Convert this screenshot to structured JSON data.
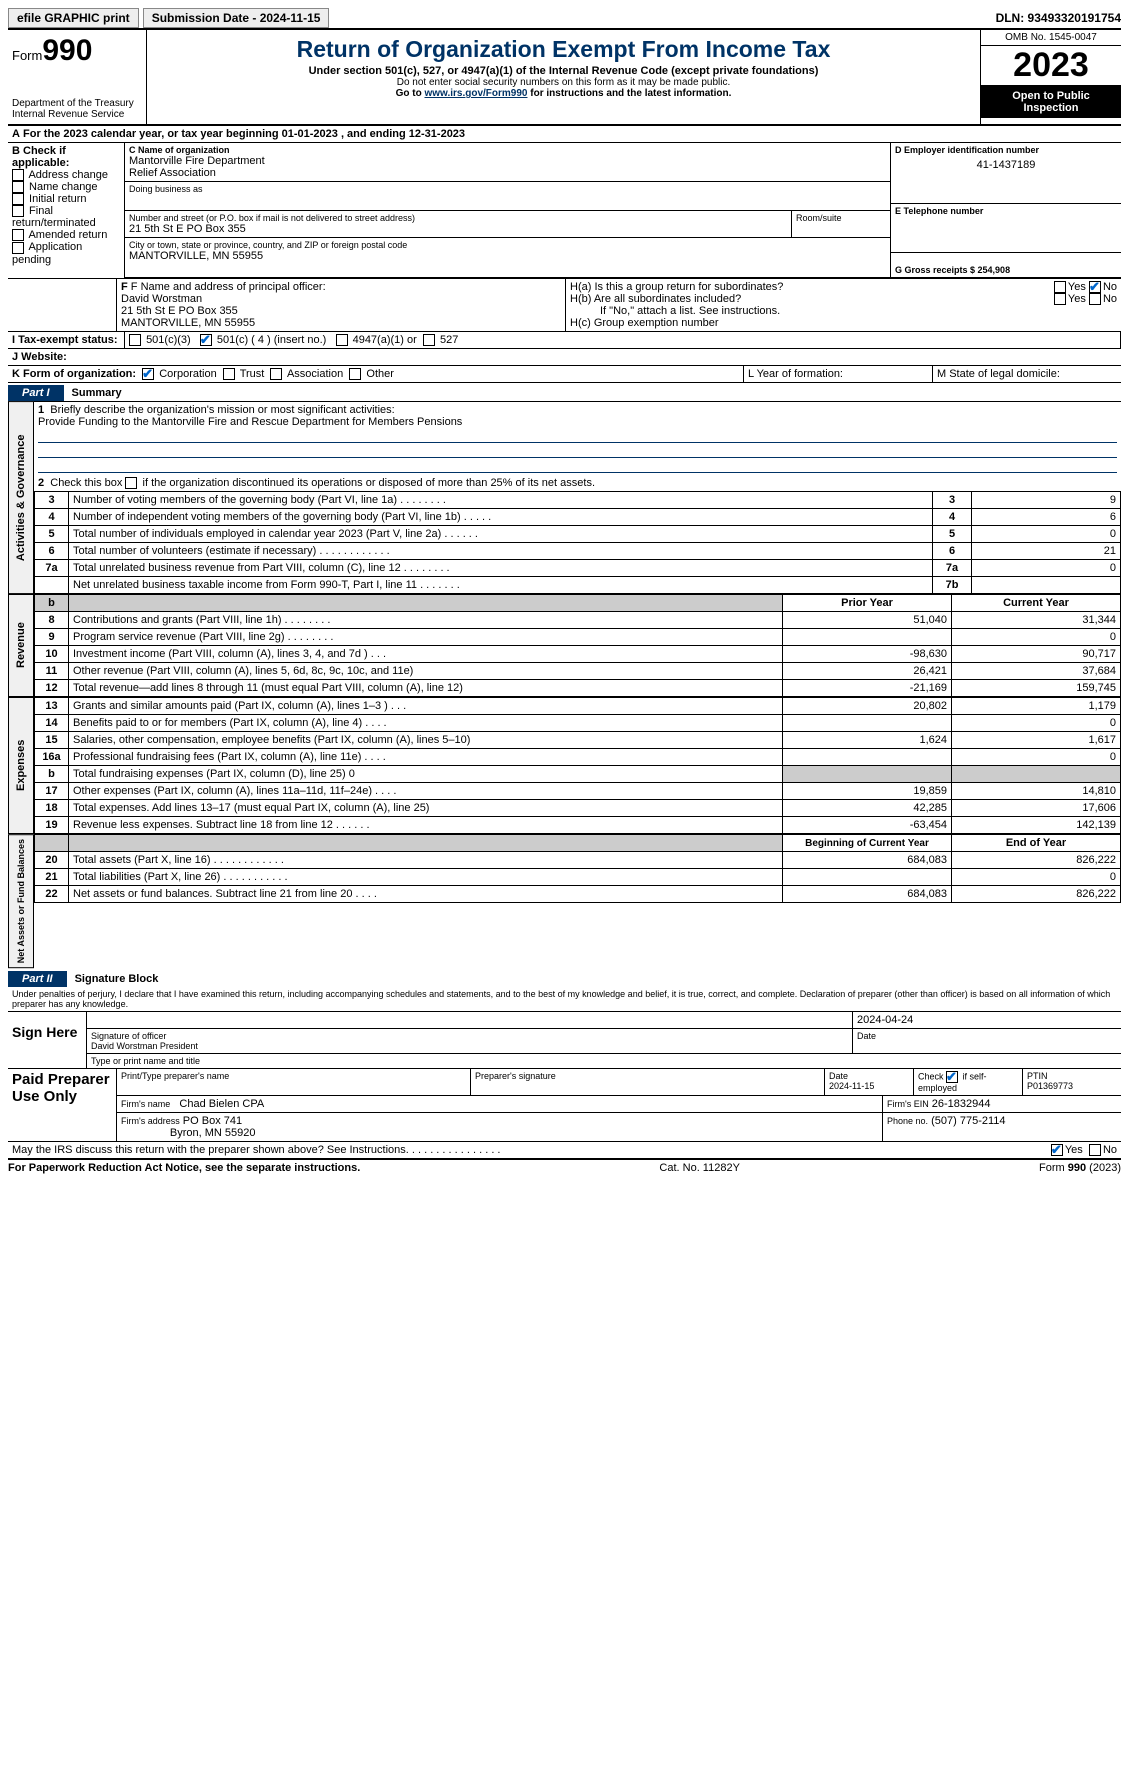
{
  "topbar": {
    "efile": "efile GRAPHIC print",
    "submission": "Submission Date - 2024-11-15",
    "dln": "DLN: 93493320191754"
  },
  "header": {
    "form_label": "Form",
    "form_no": "990",
    "dept": "Department of the Treasury\nInternal Revenue Service",
    "title": "Return of Organization Exempt From Income Tax",
    "subtitle": "Under section 501(c), 527, or 4947(a)(1) of the Internal Revenue Code (except private foundations)",
    "note1": "Do not enter social security numbers on this form as it may be made public.",
    "note2": "Go to ",
    "link": "www.irs.gov/Form990",
    "note3": " for instructions and the latest information.",
    "omb": "OMB No. 1545-0047",
    "year": "2023",
    "inspect": "Open to Public Inspection"
  },
  "line_a": "For the 2023 calendar year, or tax year beginning 01-01-2023    , and ending 12-31-2023",
  "box_b": {
    "label": "B Check if applicable:",
    "opts": [
      "Address change",
      "Name change",
      "Initial return",
      "Final return/terminated",
      "Amended return",
      "Application pending"
    ]
  },
  "box_c": {
    "label": "C Name of organization",
    "name": "Mantorville Fire Department\nRelief Association",
    "dba_label": "Doing business as",
    "addr_label": "Number and street (or P.O. box if mail is not delivered to street address)",
    "room_label": "Room/suite",
    "addr": "21 5th St E PO Box 355",
    "city_label": "City or town, state or province, country, and ZIP or foreign postal code",
    "city": "MANTORVILLE, MN  55955"
  },
  "box_d": {
    "label": "D Employer identification number",
    "val": "41-1437189"
  },
  "box_e": {
    "label": "E Telephone number"
  },
  "box_g": {
    "label": "G Gross receipts $ 254,908"
  },
  "box_f": {
    "label": "F  Name and address of principal officer:",
    "name": "David Worstman",
    "addr1": "21 5th St E PO Box 355",
    "addr2": "MANTORVILLE, MN  55955"
  },
  "box_h": {
    "a": "H(a)  Is this a group return for subordinates?",
    "b": "H(b)  Are all subordinates included?",
    "b_note": "If \"No,\" attach a list. See instructions.",
    "c": "H(c)  Group exemption number",
    "yes": "Yes",
    "no": "No"
  },
  "box_i": {
    "label": "I  Tax-exempt status:",
    "o1": "501(c)(3)",
    "o2": "501(c) ( 4 ) (insert no.)",
    "o3": "4947(a)(1) or",
    "o4": "527"
  },
  "box_j": {
    "label": "J  Website:"
  },
  "box_k": {
    "label": "K Form of organization:",
    "o1": "Corporation",
    "o2": "Trust",
    "o3": "Association",
    "o4": "Other"
  },
  "box_l": "L Year of formation:",
  "box_m": "M State of legal domicile:",
  "part1": {
    "tab": "Part I",
    "title": "Summary"
  },
  "summary": {
    "l1_label": "Briefly describe the organization's mission or most significant activities:",
    "l1_val": "Provide Funding to the Mantorville Fire and Rescue Department for Members Pensions",
    "l2": "Check this box        if the organization discontinued its operations or disposed of more than 25% of its net assets.",
    "rows_gov": [
      {
        "n": "3",
        "lbl": "Number of voting members of the governing body (Part VI, line 1a)    .    .    .    .    .    .    .    .",
        "box": "3",
        "val": "9"
      },
      {
        "n": "4",
        "lbl": "Number of independent voting members of the governing body (Part VI, line 1b)    .    .    .    .    .",
        "box": "4",
        "val": "6"
      },
      {
        "n": "5",
        "lbl": "Total number of individuals employed in calendar year 2023 (Part V, line 2a)    .    .    .    .    .    .",
        "box": "5",
        "val": "0"
      },
      {
        "n": "6",
        "lbl": "Total number of volunteers (estimate if necessary)    .    .    .    .    .    .    .    .    .    .    .    .",
        "box": "6",
        "val": "21"
      },
      {
        "n": "7a",
        "lbl": "Total unrelated business revenue from Part VIII, column (C), line 12    .    .    .    .    .    .    .    .",
        "box": "7a",
        "val": "0"
      },
      {
        "n": "",
        "lbl": "Net unrelated business taxable income from Form 990-T, Part I, line 11    .    .    .    .    .    .    .",
        "box": "7b",
        "val": ""
      }
    ],
    "col_prior": "Prior Year",
    "col_curr": "Current Year",
    "rev": [
      {
        "n": "8",
        "lbl": "Contributions and grants (Part VIII, line 1h)    .    .    .    .    .    .    .    .",
        "p": "51,040",
        "c": "31,344"
      },
      {
        "n": "9",
        "lbl": "Program service revenue (Part VIII, line 2g)    .    .    .    .    .    .    .    .",
        "p": "",
        "c": "0"
      },
      {
        "n": "10",
        "lbl": "Investment income (Part VIII, column (A), lines 3, 4, and 7d )    .    .    .",
        "p": "-98,630",
        "c": "90,717"
      },
      {
        "n": "11",
        "lbl": "Other revenue (Part VIII, column (A), lines 5, 6d, 8c, 9c, 10c, and 11e)",
        "p": "26,421",
        "c": "37,684"
      },
      {
        "n": "12",
        "lbl": "Total revenue—add lines 8 through 11 (must equal Part VIII, column (A), line 12)",
        "p": "-21,169",
        "c": "159,745"
      }
    ],
    "exp": [
      {
        "n": "13",
        "lbl": "Grants and similar amounts paid (Part IX, column (A), lines 1–3 )    .    .    .",
        "p": "20,802",
        "c": "1,179"
      },
      {
        "n": "14",
        "lbl": "Benefits paid to or for members (Part IX, column (A), line 4)    .    .    .    .",
        "p": "",
        "c": "0"
      },
      {
        "n": "15",
        "lbl": "Salaries, other compensation, employee benefits (Part IX, column (A), lines 5–10)",
        "p": "1,624",
        "c": "1,617"
      },
      {
        "n": "16a",
        "lbl": "Professional fundraising fees (Part IX, column (A), line 11e)    .    .    .    .",
        "p": "",
        "c": "0"
      },
      {
        "n": "b",
        "lbl": "Total fundraising expenses (Part IX, column (D), line 25) 0",
        "p": "SHADE",
        "c": "SHADE"
      },
      {
        "n": "17",
        "lbl": "Other expenses (Part IX, column (A), lines 11a–11d, 11f–24e)    .    .    .    .",
        "p": "19,859",
        "c": "14,810"
      },
      {
        "n": "18",
        "lbl": "Total expenses. Add lines 13–17 (must equal Part IX, column (A), line 25)",
        "p": "42,285",
        "c": "17,606"
      },
      {
        "n": "19",
        "lbl": "Revenue less expenses. Subtract line 18 from line 12    .    .    .    .    .    .",
        "p": "-63,454",
        "c": "142,139"
      }
    ],
    "col_begin": "Beginning of Current Year",
    "col_end": "End of Year",
    "net": [
      {
        "n": "20",
        "lbl": "Total assets (Part X, line 16)    .    .    .    .    .    .    .    .    .    .    .    .",
        "p": "684,083",
        "c": "826,222"
      },
      {
        "n": "21",
        "lbl": "Total liabilities (Part X, line 26)    .    .    .    .    .    .    .    .    .    .    .",
        "p": "",
        "c": "0"
      },
      {
        "n": "22",
        "lbl": "Net assets or fund balances. Subtract line 21 from line 20    .    .    .    .",
        "p": "684,083",
        "c": "826,222"
      }
    ]
  },
  "part2": {
    "tab": "Part II",
    "title": "Signature Block"
  },
  "sig": {
    "perjury": "Under penalties of perjury, I declare that I have examined this return, including accompanying schedules and statements, and to the best of my knowledge and belief, it is true, correct, and complete. Declaration of preparer (other than officer) is based on all information of which preparer has any knowledge.",
    "sign_here": "Sign Here",
    "date1": "2024-04-24",
    "sig_officer": "Signature of officer",
    "officer_name": "David Worstman President",
    "type_name": "Type or print name and title",
    "date_lbl": "Date",
    "paid": "Paid Preparer Use Only",
    "prep_name_lbl": "Print/Type preparer's name",
    "prep_sig_lbl": "Preparer's signature",
    "prep_date": "2024-11-15",
    "check_self": "Check          if self-employed",
    "ptin_lbl": "PTIN",
    "ptin": "P01369773",
    "firm_name_lbl": "Firm's name",
    "firm_name": "Chad Bielen CPA",
    "firm_ein_lbl": "Firm's EIN",
    "firm_ein": "26-1832944",
    "firm_addr_lbl": "Firm's address",
    "firm_addr1": "PO Box 741",
    "firm_addr2": "Byron, MN  55920",
    "phone_lbl": "Phone no.",
    "phone": "(507) 775-2114",
    "discuss": "May the IRS discuss this return with the preparer shown above? See Instructions.    .    .    .    .    .    .    .    .    .    .    .    .    .    .    ."
  },
  "footer": {
    "left": "For Paperwork Reduction Act Notice, see the separate instructions.",
    "mid": "Cat. No. 11282Y",
    "right_a": "Form ",
    "right_b": "990",
    "right_c": " (2023)"
  },
  "sidelabels": {
    "gov": "Activities & Governance",
    "rev": "Revenue",
    "exp": "Expenses",
    "net": "Net Assets or Fund Balances"
  }
}
